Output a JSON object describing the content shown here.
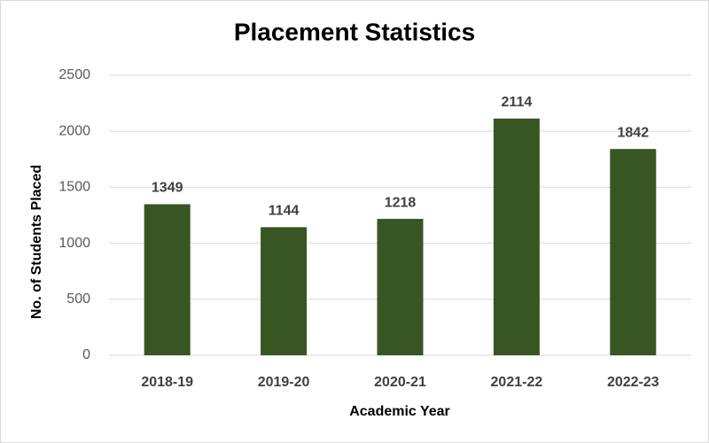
{
  "chart_data": {
    "type": "bar",
    "title": "Placement Statistics",
    "x_label": "Academic Year",
    "y_label": "No. of Students Placed",
    "categories": [
      "2018-19",
      "2019-20",
      "2020-21",
      "2021-22",
      "2022-23"
    ],
    "values": [
      1349,
      1144,
      1218,
      2114,
      1842
    ],
    "color": "#375623",
    "ylim": [
      0,
      2500
    ],
    "yticks": [
      0,
      500,
      1000,
      1500,
      2000,
      2500
    ],
    "grid": true
  }
}
